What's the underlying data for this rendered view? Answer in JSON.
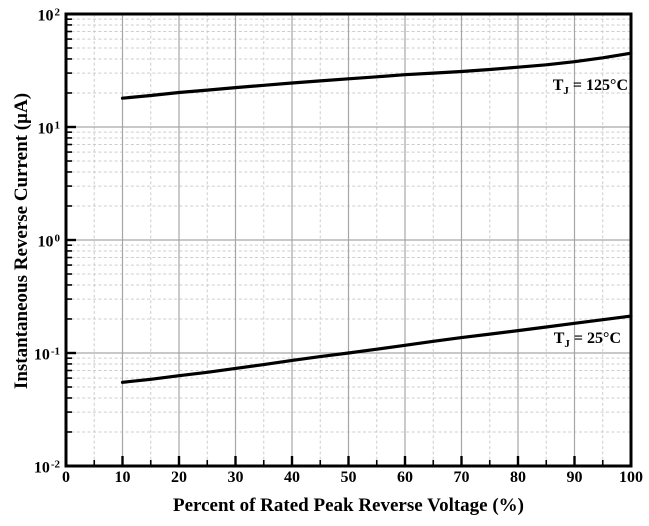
{
  "figure": {
    "background": "#ffffff",
    "frame_color": "#000000",
    "curve_color": "#000000",
    "grid_major_color": "#a6a6a6",
    "grid_minor_color": "#cdcdcd"
  },
  "chart_data": {
    "type": "line",
    "title": "",
    "xlabel": "Percent of Rated Peak Reverse Voltage (%)",
    "ylabel": "Instantaneous Reverse Current (µA)",
    "x_axis": {
      "min": 0,
      "max": 100,
      "major_ticks": [
        0,
        10,
        20,
        30,
        40,
        50,
        60,
        70,
        80,
        90,
        100
      ],
      "tick_labels": [
        "0",
        "10",
        "20",
        "30",
        "40",
        "50",
        "60",
        "70",
        "80",
        "90",
        "100"
      ],
      "minor_ticks": [
        5,
        15,
        25,
        35,
        45,
        55,
        65,
        75,
        85,
        95
      ]
    },
    "y_axis": {
      "scale": "log10",
      "min": 0.01,
      "max": 100,
      "decade_exponents": [
        2,
        1,
        0,
        -1,
        -2
      ],
      "tick_label_base": "10",
      "minor_multipliers": [
        2,
        3,
        4,
        5,
        6,
        7,
        8,
        9
      ]
    },
    "grid": {
      "major_solid": true,
      "minor_dashed": true
    },
    "legend_position": "inline-annotations",
    "series": [
      {
        "name": "TJ = 125°C",
        "annotation": {
          "base": "T",
          "sub": "J",
          "suffix": " = 125°C"
        },
        "x": [
          10,
          15,
          20,
          25,
          30,
          35,
          40,
          45,
          50,
          55,
          60,
          65,
          70,
          75,
          80,
          85,
          90,
          95,
          100
        ],
        "values": [
          18,
          19,
          20.2,
          21.2,
          22.3,
          23.4,
          24.5,
          25.6,
          26.7,
          27.8,
          29,
          30,
          31,
          32.3,
          33.8,
          35.5,
          37.8,
          41,
          45
        ]
      },
      {
        "name": "TJ = 25°C",
        "annotation": {
          "base": "T",
          "sub": "J",
          "suffix": " = 25°C"
        },
        "x": [
          10,
          15,
          20,
          25,
          30,
          35,
          40,
          45,
          50,
          55,
          60,
          65,
          70,
          75,
          80,
          85,
          90,
          95,
          100
        ],
        "values": [
          0.055,
          0.0585,
          0.063,
          0.0675,
          0.073,
          0.079,
          0.086,
          0.093,
          0.1,
          0.108,
          0.117,
          0.127,
          0.137,
          0.147,
          0.158,
          0.17,
          0.183,
          0.197,
          0.212
        ]
      }
    ]
  }
}
